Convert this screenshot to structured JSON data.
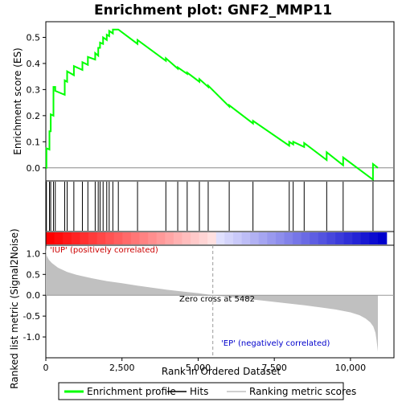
{
  "chart_data": {
    "type": "line",
    "title": "Enrichment plot: GNF2_MMP11",
    "xlabel": "Rank in Ordered Dataset",
    "xlim": [
      0,
      11391
    ],
    "xticks": [
      0,
      2500,
      5000,
      7500,
      10000
    ],
    "xtick_labels": [
      "0",
      "2,500",
      "5,000",
      "7,500",
      "10,000"
    ],
    "es_panel": {
      "ylabel": "Enrichment score (ES)",
      "ylim": [
        -0.05,
        0.56
      ],
      "yticks": [
        0.0,
        0.1,
        0.2,
        0.3,
        0.4,
        0.5
      ],
      "ytick_labels": [
        "0.0",
        "0.1",
        "0.2",
        "0.3",
        "0.4",
        "0.5"
      ],
      "series": [
        {
          "name": "Enrichment profile",
          "color": "#00ff00",
          "x": [
            0,
            20,
            20,
            120,
            120,
            160,
            160,
            250,
            250,
            310,
            310,
            620,
            620,
            700,
            700,
            920,
            920,
            1200,
            1200,
            1380,
            1380,
            1620,
            1620,
            1720,
            1720,
            1780,
            1780,
            1880,
            1880,
            2000,
            2000,
            2080,
            2080,
            2200,
            2200,
            2380,
            2380,
            3010,
            3010,
            3940,
            3940,
            4330,
            4330,
            4640,
            4640,
            5040,
            5040,
            5330,
            5330,
            6020,
            6020,
            6800,
            6800,
            7990,
            7990,
            8120,
            8120,
            8480,
            8480,
            9220,
            9220,
            9760,
            9760,
            10740,
            10740,
            10900
          ],
          "y": [
            0.0,
            0.0,
            0.075,
            0.07,
            0.14,
            0.14,
            0.205,
            0.2,
            0.31,
            0.31,
            0.295,
            0.28,
            0.335,
            0.33,
            0.37,
            0.355,
            0.39,
            0.375,
            0.405,
            0.395,
            0.425,
            0.415,
            0.44,
            0.43,
            0.46,
            0.46,
            0.48,
            0.475,
            0.5,
            0.49,
            0.51,
            0.505,
            0.525,
            0.515,
            0.53,
            0.53,
            0.53,
            0.475,
            0.49,
            0.41,
            0.42,
            0.38,
            0.385,
            0.36,
            0.365,
            0.33,
            0.34,
            0.31,
            0.315,
            0.235,
            0.24,
            0.17,
            0.18,
            0.085,
            0.1,
            0.09,
            0.1,
            0.08,
            0.095,
            0.03,
            0.06,
            0.01,
            0.04,
            -0.045,
            0.015,
            0.0
          ]
        }
      ]
    },
    "hits": {
      "name": "Hits",
      "x": [
        20,
        120,
        160,
        250,
        310,
        620,
        700,
        920,
        1200,
        1380,
        1620,
        1720,
        1780,
        1880,
        2000,
        2080,
        2200,
        2380,
        3010,
        3940,
        4330,
        4640,
        5040,
        5330,
        6020,
        6800,
        7990,
        8120,
        8480,
        9220,
        9760,
        10740
      ]
    },
    "metric_panel": {
      "ylabel": "Ranked list metric (Signal2Noise)",
      "ylim": [
        -1.5,
        1.2
      ],
      "yticks": [
        -1.0,
        -0.5,
        0.0,
        0.5,
        1.0
      ],
      "ytick_labels": [
        "-1.0",
        "-0.5",
        "0.0",
        "0.5",
        "1.0"
      ],
      "series": [
        {
          "name": "Ranking metric scores",
          "color": "#c0c0c0",
          "x": [
            0,
            30,
            100,
            200,
            400,
            700,
            1000,
            1500,
            2000,
            2500,
            3000,
            3500,
            4000,
            4500,
            5000,
            5482,
            6000,
            6500,
            7000,
            7500,
            8000,
            8500,
            9000,
            9500,
            10000,
            10300,
            10500,
            10650,
            10750,
            10820,
            10860,
            10900
          ],
          "y": [
            1.15,
            0.95,
            0.85,
            0.77,
            0.66,
            0.56,
            0.49,
            0.41,
            0.34,
            0.29,
            0.23,
            0.18,
            0.13,
            0.09,
            0.05,
            0.0,
            -0.04,
            -0.08,
            -0.12,
            -0.16,
            -0.2,
            -0.24,
            -0.29,
            -0.34,
            -0.41,
            -0.48,
            -0.56,
            -0.65,
            -0.75,
            -0.9,
            -1.1,
            -1.35
          ]
        }
      ]
    },
    "zero_cross": {
      "x": 5482,
      "label": "Zero cross at 5482"
    },
    "annotations": {
      "up_label": "'IUP' (positively correlated)",
      "down_label": "'EP' (negatively correlated)"
    },
    "legend": {
      "placement": "bottom",
      "entries": [
        {
          "label": "Enrichment profile",
          "color": "#00ff00"
        },
        {
          "label": "Hits",
          "color": "#000000"
        },
        {
          "label": "Ranking metric scores",
          "color": "#c0c0c0"
        }
      ]
    },
    "colors": {
      "up_text": "#cc0000",
      "down_text": "#0000cc"
    }
  }
}
